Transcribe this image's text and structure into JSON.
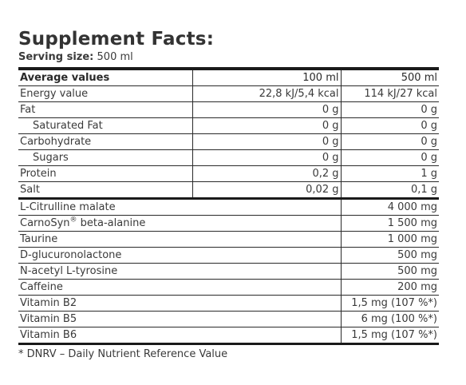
{
  "title": "Supplement Facts:",
  "serving": {
    "label": "Serving size:",
    "value": "500 ml"
  },
  "nutrition": {
    "header": [
      "Average values",
      "100 ml",
      "500 ml"
    ],
    "rows": [
      {
        "name": "Energy value",
        "per100": "22,8 kJ/5,4 kcal",
        "per500": "114 kJ/27 kcal",
        "indent": false
      },
      {
        "name": "Fat",
        "per100": "0 g",
        "per500": "0 g",
        "indent": false
      },
      {
        "name": "Saturated Fat",
        "per100": "0 g",
        "per500": "0 g",
        "indent": true
      },
      {
        "name": "Carbohydrate",
        "per100": "0 g",
        "per500": "0 g",
        "indent": false
      },
      {
        "name": "Sugars",
        "per100": "0 g",
        "per500": "0 g",
        "indent": true
      },
      {
        "name": "Protein",
        "per100": "0,2 g",
        "per500": "1 g",
        "indent": false
      },
      {
        "name": "Salt",
        "per100": "0,02 g",
        "per500": "0,1 g",
        "indent": false
      }
    ]
  },
  "actives": [
    {
      "name": "L-Citrulline malate",
      "amount": "4 000 mg"
    },
    {
      "name": "CarnoSyn",
      "reg": "®",
      "name_suffix": " beta-alanine",
      "amount": "1 500 mg"
    },
    {
      "name": "Taurine",
      "amount": "1 000 mg"
    },
    {
      "name": "D-glucuronolactone",
      "amount": "500 mg"
    },
    {
      "name": "N-acetyl L-tyrosine",
      "amount": "500 mg"
    },
    {
      "name": "Caffeine",
      "amount": "200 mg"
    },
    {
      "name": "Vitamin B2",
      "amount": "1,5 mg (107 %*)"
    },
    {
      "name": "Vitamin B5",
      "amount": "6 mg (100 %*)"
    },
    {
      "name": "Vitamin B6",
      "amount": "1,5 mg (107 %*)"
    }
  ],
  "footnote": "* DNRV – Daily Nutrient Reference Value"
}
